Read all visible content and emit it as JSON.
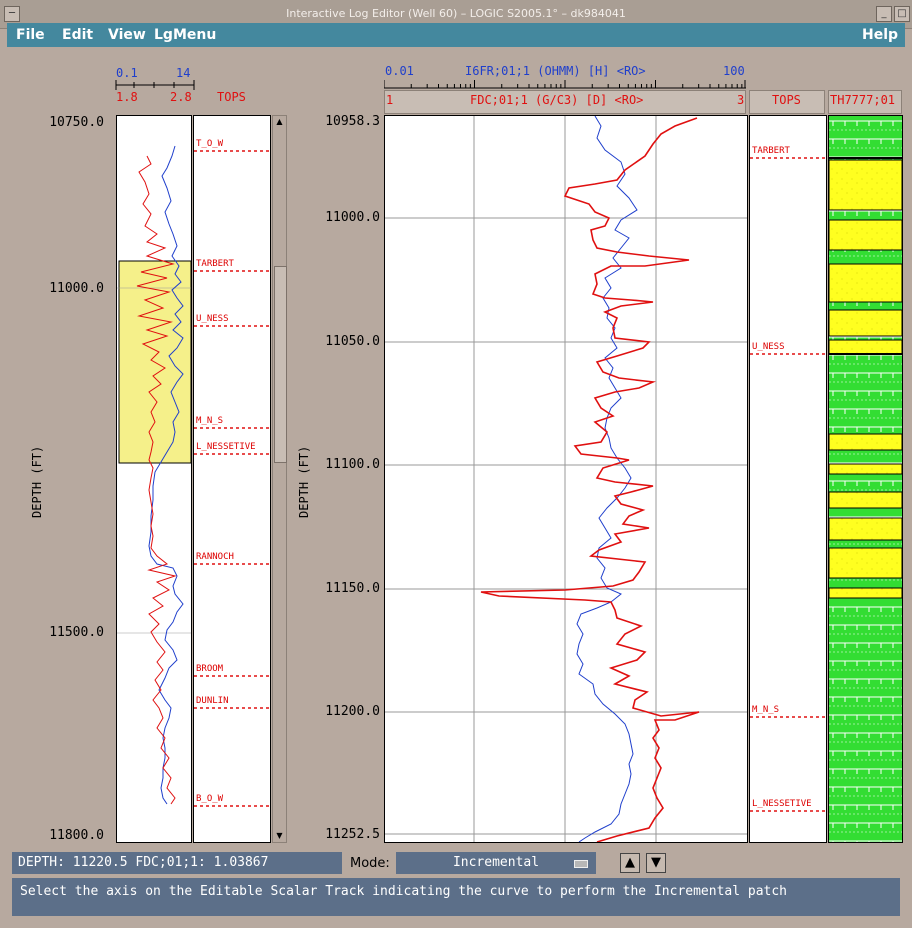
{
  "window": {
    "title": "Interactive Log Editor (Well 60) – LOGIC S2005.1° – dk984041"
  },
  "menu": {
    "file": "File",
    "edit": "Edit",
    "view": "View",
    "lgmenu": "LgMenu",
    "help": "Help"
  },
  "overview": {
    "scale_blue_min": "0.1",
    "scale_blue_max": "14",
    "scale_red_min": "1.8",
    "scale_red_max": "2.8",
    "tops_header": "TOPS",
    "depth_labels": [
      "10750.0",
      "11000.0",
      "11500.0",
      "11800.0"
    ],
    "axis_title": "DEPTH (FT)",
    "tops": [
      "T_O_W",
      "TARBERT",
      "U_NESS",
      "M_N_S",
      "L_NESSETIVE",
      "RANNOCH",
      "BROOM",
      "DUNLIN",
      "B_O_W"
    ]
  },
  "detail": {
    "scale_blue_min": "0.01",
    "scale_blue_name": "I6FR;01;1 (OHMM) [H] <RO>",
    "scale_blue_max": "100",
    "scale_red_min": "1",
    "scale_red_name": "FDC;01;1 (G/C3) [D] <RO>",
    "scale_red_max": "3",
    "tops_header": "TOPS",
    "lith_header": "TH7777;01",
    "depth_labels": [
      "10958.3",
      "11000.0",
      "11050.0",
      "11100.0",
      "11150.0",
      "11200.0",
      "11252.5"
    ],
    "axis_title": "DEPTH (FT)",
    "tops": [
      "TARBERT",
      "U_NESS",
      "M_N_S",
      "L_NESSETIVE"
    ]
  },
  "status": {
    "readout": "DEPTH: 11220.5 FDC;01;1: 1.03867"
  },
  "mode": {
    "label": "Mode:",
    "value": "Incremental"
  },
  "message": "Select the axis on the Editable Scalar Track indicating the curve to perform the Incremental patch",
  "colors": {
    "menubar": "#44889e",
    "status": "#5c6f89",
    "curve_red": "#e01010",
    "curve_blue": "#1f3fcc",
    "sand": "#ffff20",
    "shale": "#33dd33",
    "highlight": "#f5f08a"
  }
}
